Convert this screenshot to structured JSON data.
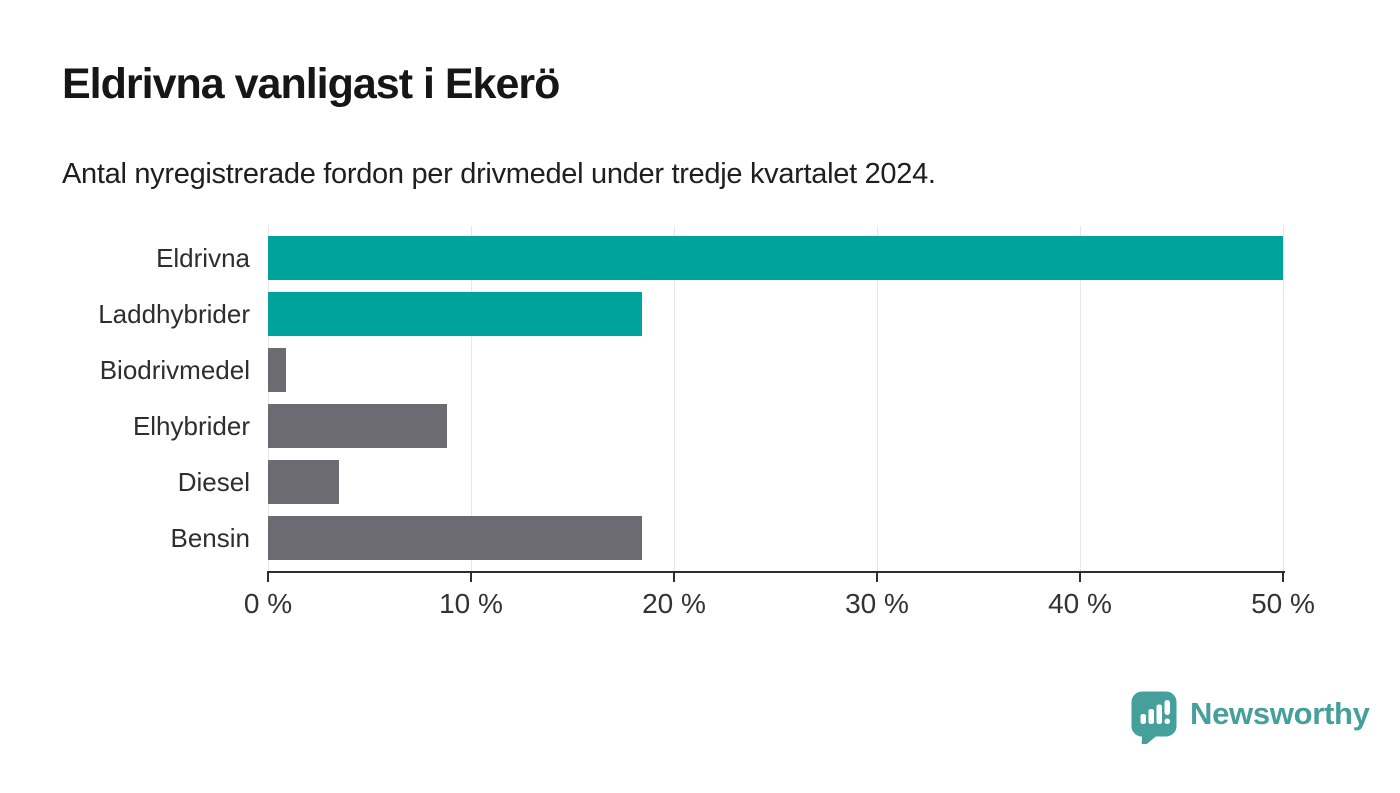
{
  "header": {
    "title": "Eldrivna vanligast i Ekerö",
    "subtitle": "Antal nyregistrerade fordon per drivmedel under tredje kvartalet 2024."
  },
  "chart_data": {
    "type": "bar",
    "orientation": "horizontal",
    "title": "Eldrivna vanligast i Ekerö",
    "subtitle": "Antal nyregistrerade fordon per drivmedel under tredje kvartalet 2024.",
    "categories": [
      "Eldrivna",
      "Laddhybrider",
      "Biodrivmedel",
      "Elhybrider",
      "Diesel",
      "Bensin"
    ],
    "values": [
      50.0,
      18.4,
      0.9,
      8.8,
      3.5,
      18.4
    ],
    "unit": "%",
    "bar_colors": [
      "#00a39b",
      "#00a39b",
      "#6c6b71",
      "#6c6b71",
      "#6c6b71",
      "#6c6b71"
    ],
    "highlight_color": "#00a39b",
    "default_color": "#6c6b71",
    "xlim": [
      0,
      50
    ],
    "x_tick_values": [
      0,
      10,
      20,
      30,
      40,
      50
    ],
    "x_tick_labels": [
      "0 %",
      "10 %",
      "20 %",
      "30 %",
      "40 %",
      "50 %"
    ],
    "grid": true,
    "legend_position": "none",
    "xlabel": "",
    "ylabel": ""
  },
  "footer": {
    "brand_name": "Newsworthy",
    "brand_color": "#45a09b"
  }
}
